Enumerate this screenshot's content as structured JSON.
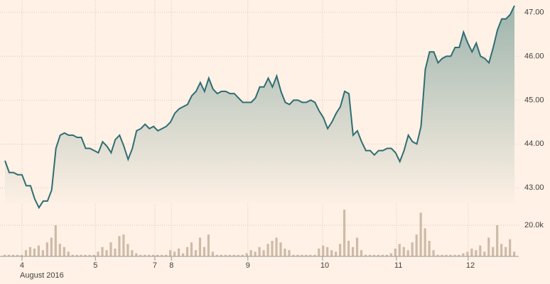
{
  "chart_data": {
    "type": "area",
    "x": [
      0,
      1,
      2,
      3,
      4,
      5,
      6,
      7,
      8,
      9,
      10,
      11,
      12,
      13,
      14,
      15,
      16,
      17,
      18,
      19,
      20,
      21,
      22,
      23,
      24,
      25,
      26,
      27,
      28,
      29,
      30,
      31,
      32,
      33,
      34,
      35,
      36,
      37,
      38,
      39,
      40,
      41,
      42,
      43,
      44,
      45,
      46,
      47,
      48,
      49,
      50,
      51,
      52,
      53,
      54,
      55,
      56,
      57,
      58,
      59,
      60,
      61,
      62,
      63,
      64,
      65,
      66,
      67,
      68,
      69,
      70,
      71,
      72,
      73,
      74,
      75,
      76,
      77,
      78,
      79,
      80,
      81,
      82,
      83,
      84,
      85,
      86,
      87,
      88,
      89,
      90,
      91,
      92,
      93,
      94,
      95,
      96,
      97,
      98,
      99,
      100,
      101,
      102,
      103,
      104,
      105,
      106,
      107,
      108,
      109,
      110,
      111,
      112,
      113,
      114,
      115,
      116,
      117,
      118,
      119,
      120
    ],
    "xlim": [
      0,
      120
    ],
    "xticks": [
      {
        "value": 4,
        "label": "4"
      },
      {
        "value": 21.3,
        "label": "5"
      },
      {
        "value": 35.3,
        "label": "7"
      },
      {
        "value": 39.2,
        "label": "8"
      },
      {
        "value": 57.2,
        "label": "9"
      },
      {
        "value": 74.8,
        "label": "10"
      },
      {
        "value": 92.2,
        "label": "11"
      },
      {
        "value": 109.1,
        "label": "12"
      }
    ],
    "x_sublabel": "August 2016",
    "ylim": [
      42.65,
      47.2
    ],
    "yticks": [
      {
        "value": 43,
        "label": "43.00"
      },
      {
        "value": 44,
        "label": "44.00"
      },
      {
        "value": 45,
        "label": "45.00"
      },
      {
        "value": 46,
        "label": "46.00"
      },
      {
        "value": 47,
        "label": "47.00"
      }
    ],
    "y2lim": [
      0,
      30000
    ],
    "y2ticks": [
      {
        "value": 20000,
        "label": "20.0k"
      }
    ],
    "grid": true,
    "series": [
      {
        "type": "area",
        "color": "#2e6e73",
        "values": [
          43.62,
          43.35,
          43.35,
          43.3,
          43.3,
          43.05,
          43.05,
          42.75,
          42.55,
          42.7,
          42.7,
          42.95,
          43.9,
          44.2,
          44.25,
          44.2,
          44.2,
          44.15,
          44.15,
          43.9,
          43.9,
          43.85,
          43.8,
          44.05,
          43.95,
          43.8,
          44.1,
          44.2,
          43.95,
          43.65,
          43.9,
          44.3,
          44.35,
          44.45,
          44.35,
          44.4,
          44.3,
          44.35,
          44.4,
          44.5,
          44.7,
          44.8,
          44.85,
          44.9,
          45.1,
          45.2,
          45.4,
          45.2,
          45.5,
          45.25,
          45.15,
          45.2,
          45.2,
          45.15,
          45.15,
          45.05,
          44.95,
          44.95,
          44.95,
          45.05,
          45.3,
          45.3,
          45.5,
          45.3,
          45.55,
          45.2,
          44.95,
          44.9,
          45.0,
          45.0,
          44.95,
          44.95,
          45.0,
          44.95,
          44.75,
          44.6,
          44.35,
          44.5,
          44.7,
          44.85,
          45.2,
          45.15,
          44.2,
          44.3,
          44.05,
          43.85,
          43.85,
          43.75,
          43.85,
          43.85,
          43.9,
          43.9,
          43.8,
          43.6,
          43.85,
          44.2,
          44.05,
          44.0,
          44.4,
          45.7,
          46.1,
          46.1,
          45.85,
          45.95,
          46.0,
          46.0,
          46.2,
          46.2,
          46.55,
          46.3,
          46.1,
          46.3,
          46.0,
          45.95,
          45.85,
          46.2,
          46.6,
          46.85,
          46.85,
          46.95,
          47.15
        ]
      },
      {
        "type": "bar",
        "axis": "y2",
        "color": "#cdbba8",
        "values": [
          1000,
          1000,
          1000,
          1000,
          1000,
          4000,
          6000,
          5000,
          7000,
          4000,
          9000,
          12000,
          20000,
          8000,
          6000,
          3000,
          1000,
          1000,
          1000,
          1000,
          1000,
          1000,
          3000,
          6000,
          4000,
          9000,
          5000,
          13000,
          14000,
          8000,
          4000,
          2000,
          1000,
          1000,
          1000,
          1000,
          1000,
          1000,
          1000,
          4000,
          3000,
          5000,
          2000,
          6000,
          9000,
          4000,
          12000,
          6000,
          14000,
          3000,
          1000,
          1000,
          1000,
          1000,
          1000,
          1000,
          1000,
          2000,
          4000,
          3000,
          6000,
          4000,
          8000,
          10000,
          12000,
          9000,
          5000,
          4000,
          1000,
          1000,
          1000,
          1000,
          1000,
          1000,
          5000,
          7000,
          6000,
          4000,
          3000,
          8000,
          30000,
          10000,
          6000,
          12000,
          4000,
          1000,
          1000,
          1000,
          1000,
          1000,
          1000,
          2000,
          5000,
          8000,
          6000,
          4000,
          9000,
          14000,
          28000,
          18000,
          10000,
          4000,
          1000,
          1000,
          1000,
          1000,
          1000,
          1000,
          2000,
          3000,
          5000,
          4000,
          7000,
          3000,
          12000,
          6000,
          20000,
          8000,
          6000,
          11000,
          3000
        ]
      }
    ]
  }
}
